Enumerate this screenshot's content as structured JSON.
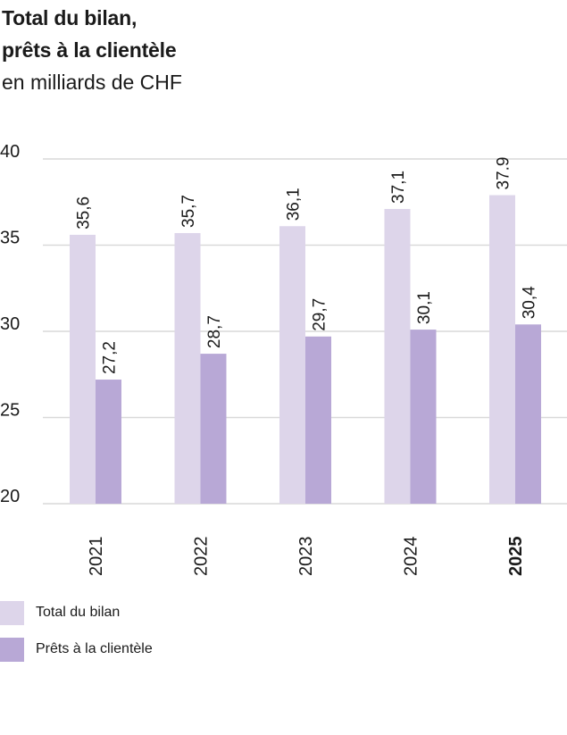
{
  "title": {
    "line1": "Total du bilan,",
    "line2": "prêts à la clientèle",
    "subtitle": "en milliards de CHF"
  },
  "colors": {
    "total": "#ddd5ea",
    "prets": "#b8a8d6",
    "grid": "#d9d9d9",
    "text": "#1a1a1a"
  },
  "chart_data": {
    "type": "bar",
    "categories": [
      "2021",
      "2022",
      "2023",
      "2024",
      "2025"
    ],
    "highlight_category": "2025",
    "series": [
      {
        "name": "Total du bilan",
        "values": [
          35.6,
          35.7,
          36.1,
          37.1,
          37.9
        ],
        "labels": [
          "35,6",
          "35,7",
          "36,1",
          "37,1",
          "37.9"
        ]
      },
      {
        "name": "Prêts à la clientèle",
        "values": [
          27.2,
          28.7,
          29.7,
          30.1,
          30.4
        ],
        "labels": [
          "27,2",
          "28,7",
          "29,7",
          "30,1",
          "30,4"
        ]
      }
    ],
    "yticks": [
      "20",
      "25",
      "30",
      "35",
      "40"
    ],
    "ylim": [
      20,
      40
    ],
    "grid": true,
    "legend_position": "bottom-left"
  },
  "legend": [
    {
      "label": "Total du bilan",
      "color": "#ddd5ea"
    },
    {
      "label": "Prêts à la clientèle",
      "color": "#b8a8d6"
    }
  ]
}
